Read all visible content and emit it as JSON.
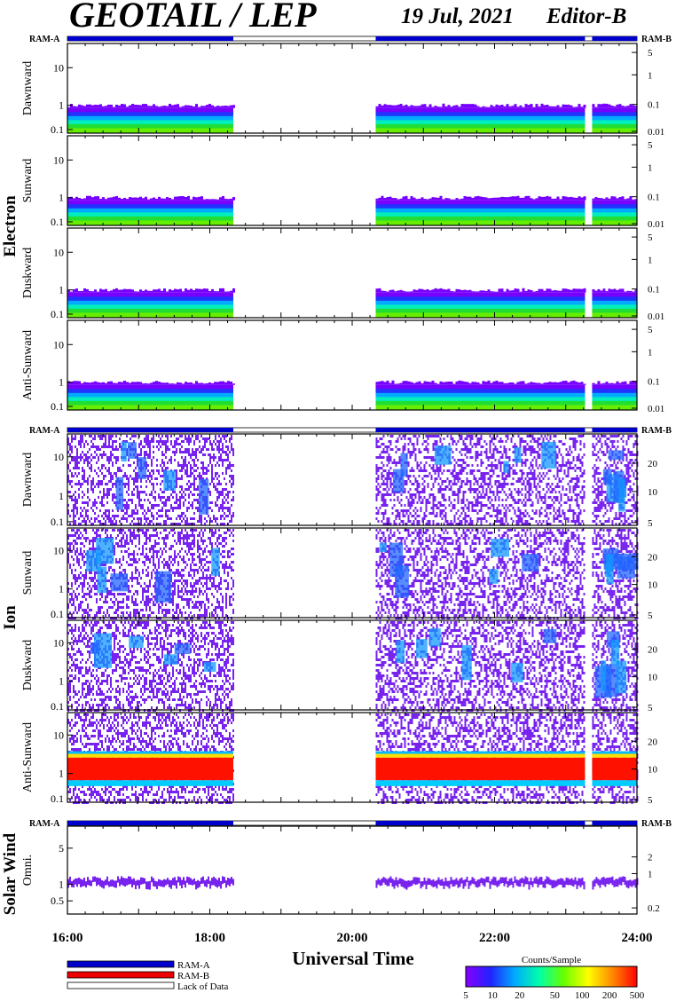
{
  "header": {
    "title": "GEOTAIL / LEP",
    "date": "19 Jul, 2021",
    "editor": "Editor-B"
  },
  "chart_data": {
    "type": "heatmap",
    "xlabel": "Universal Time",
    "x_ticks": [
      "16:00",
      "18:00",
      "20:00",
      "22:00",
      "24:00"
    ],
    "xlim_hours": [
      16,
      24
    ],
    "data_coverage_hours": [
      [
        16.0,
        18.33
      ],
      [
        20.33,
        23.27
      ],
      [
        23.37,
        24.0
      ]
    ],
    "mode_bar_labels": {
      "left": "RAM-A",
      "right": "RAM-B"
    },
    "groups": [
      {
        "name": "Electron",
        "right_ticks": [
          "5",
          "1",
          "0.1",
          "0.01"
        ],
        "left_ticks": [
          "10",
          "1",
          "0.1"
        ],
        "panels": [
          {
            "label": "Dawnward"
          },
          {
            "label": "Sunward"
          },
          {
            "label": "Duskward"
          },
          {
            "label": "Anti-Sunward"
          }
        ]
      },
      {
        "name": "Ion",
        "right_ticks": [
          "20",
          "10",
          "5"
        ],
        "left_ticks": [
          "10",
          "1",
          "0.1"
        ],
        "panels": [
          {
            "label": "Dawnward"
          },
          {
            "label": "Sunward"
          },
          {
            "label": "Duskward"
          },
          {
            "label": "Anti-Sunward"
          }
        ]
      },
      {
        "name": "Solar Wind",
        "right_ticks": [
          "2",
          "1",
          "0.2"
        ],
        "left_ticks": [
          "5",
          "1",
          "0.5"
        ],
        "panels": [
          {
            "label": "Omni."
          }
        ]
      }
    ],
    "legend": [
      {
        "label": "RAM-A",
        "color": "#0000cc"
      },
      {
        "label": "RAM-B",
        "color": "#ee0000"
      },
      {
        "label": "Lack of Data",
        "color": "#ffffff"
      }
    ],
    "colorbar": {
      "title": "Counts/Sample",
      "ticks": [
        "5",
        "10",
        "20",
        "50",
        "100",
        "200",
        "500"
      ],
      "colors": [
        "#8800ff",
        "#2222ff",
        "#00aaff",
        "#00ffaa",
        "#66ff00",
        "#ffff00",
        "#ff8800",
        "#ff0000"
      ]
    }
  }
}
